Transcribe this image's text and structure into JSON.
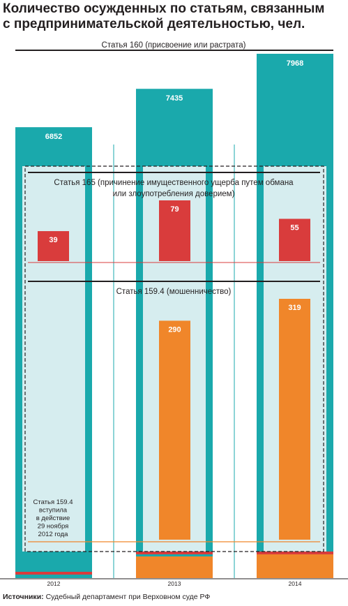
{
  "title_lines": [
    "Количество осужденных по статьям, связанным",
    "с предпринимательской деятельностью, чел."
  ],
  "source": {
    "label": "Источники:",
    "text": "Судебный департамент при Верховном суде РФ"
  },
  "colors": {
    "teal": "#1aa9ac",
    "red": "#d93c3c",
    "orange": "#f0862a",
    "light_teal": "#d6edef",
    "text": "#231f20"
  },
  "chart_data": [
    {
      "type": "bar",
      "title": "Статья 160 (присвоение или растрата)",
      "categories": [
        "2012",
        "2013",
        "2014"
      ],
      "values": [
        6852,
        7435,
        7968
      ],
      "ylim": [
        0,
        7968
      ]
    },
    {
      "type": "bar",
      "title": "Статья 165 (причинение имущественного ущерба путем обмана или злоупотребления доверием)",
      "title_lines": [
        "Статья 165 (причинение имущественного ущерба путем обмана",
        "или злоупотребления доверием)"
      ],
      "categories": [
        "2012",
        "2013",
        "2014"
      ],
      "values": [
        39,
        79,
        55
      ],
      "ylim": [
        0,
        79
      ]
    },
    {
      "type": "bar",
      "title": "Статья 159.4 (мошенничество)",
      "categories": [
        "2012",
        "2013",
        "2014"
      ],
      "values": [
        0,
        290,
        319
      ],
      "ylim": [
        0,
        319
      ],
      "annotation_lines": [
        "Статья 159.4",
        "вступила",
        "в действие",
        "29 ноября",
        "2012 года"
      ]
    }
  ]
}
